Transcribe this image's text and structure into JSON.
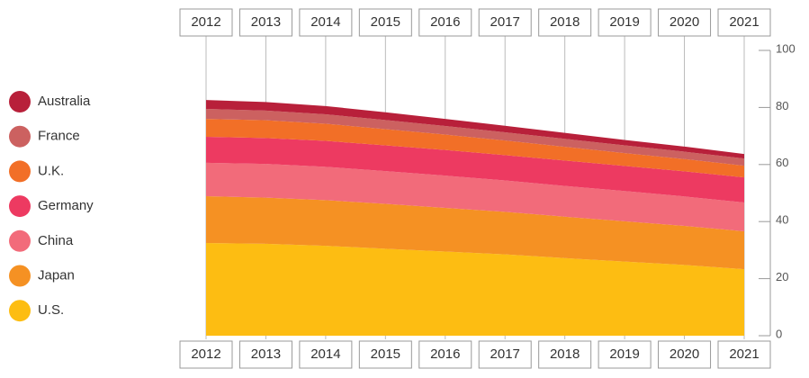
{
  "chart_data": {
    "type": "stacked_area",
    "categories": [
      "2012",
      "2013",
      "2014",
      "2015",
      "2016",
      "2017",
      "2018",
      "2019",
      "2020",
      "2021"
    ],
    "series": [
      {
        "name": "U.S.",
        "color": "#fdbd12",
        "values": [
          32.5,
          32.2,
          31.5,
          30.5,
          29.5,
          28.5,
          27.2,
          26,
          24.8,
          23.3
        ]
      },
      {
        "name": "Japan",
        "color": "#f59123",
        "values": [
          16.4,
          16.2,
          16,
          15.7,
          15.3,
          14.9,
          14.5,
          14.1,
          13.7,
          13.3
        ]
      },
      {
        "name": "China",
        "color": "#f26b7a",
        "values": [
          11.7,
          11.8,
          11.7,
          11.5,
          11.3,
          11.0,
          10.8,
          10.6,
          10.3,
          10.1
        ]
      },
      {
        "name": "Germany",
        "color": "#ed3a61",
        "values": [
          9.1,
          9.1,
          9.1,
          9.0,
          9.0,
          8.9,
          8.9,
          8.8,
          8.8,
          8.8
        ]
      },
      {
        "name": "U.K.",
        "color": "#f26f27",
        "values": [
          6.3,
          6.2,
          6.0,
          5.7,
          5.4,
          5.1,
          4.8,
          4.5,
          4.3,
          4.1
        ]
      },
      {
        "name": "France",
        "color": "#cc6160",
        "values": [
          3.5,
          3.4,
          3.3,
          3.2,
          3.0,
          2.9,
          2.8,
          2.7,
          2.6,
          2.5
        ]
      },
      {
        "name": "Australia",
        "color": "#b8203a",
        "values": [
          3.1,
          3.0,
          2.9,
          2.7,
          2.5,
          2.3,
          2.1,
          1.9,
          1.8,
          1.6
        ]
      }
    ],
    "ylim": [
      0,
      100
    ],
    "yticks": [
      0,
      20,
      40,
      60,
      80,
      100
    ],
    "legend": "left"
  }
}
